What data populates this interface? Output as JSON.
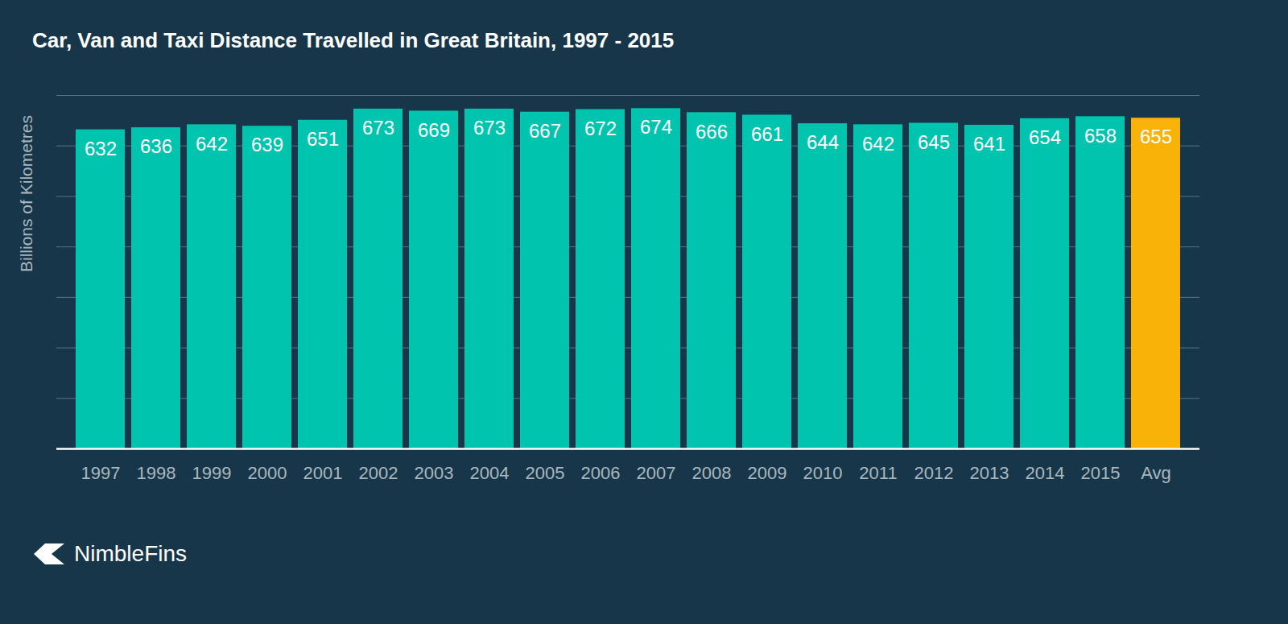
{
  "chart_data": {
    "type": "bar",
    "title": "Car, Van and Taxi Distance Travelled in Great Britain, 1997 - 2015",
    "y_label": "Billions of Kilometres",
    "caption": "NimbleFins",
    "categories": [
      "1997",
      "1998",
      "1999",
      "2000",
      "2001",
      "2002",
      "2003",
      "2004",
      "2005",
      "2006",
      "2007",
      "2008",
      "2009",
      "2010",
      "2011",
      "2012",
      "2013",
      "2014",
      "2015",
      "Avg"
    ],
    "values": [
      632,
      636,
      642,
      639,
      651,
      673,
      669,
      673,
      667,
      672,
      674,
      666,
      661,
      644,
      642,
      645,
      641,
      654,
      658,
      655
    ],
    "colors": [
      "#00c4ad",
      "#00c4ad",
      "#00c4ad",
      "#00c4ad",
      "#00c4ad",
      "#00c4ad",
      "#00c4ad",
      "#00c4ad",
      "#00c4ad",
      "#00c4ad",
      "#00c4ad",
      "#00c4ad",
      "#00c4ad",
      "#00c4ad",
      "#00c4ad",
      "#00c4ad",
      "#00c4ad",
      "#00c4ad",
      "#00c4ad",
      "#f9b208"
    ],
    "ylim": [
      0,
      700
    ],
    "yticks": [
      0,
      100,
      200,
      300,
      400,
      500,
      600,
      700
    ],
    "grid": true,
    "data_labels": true,
    "tick_labels": "x"
  }
}
